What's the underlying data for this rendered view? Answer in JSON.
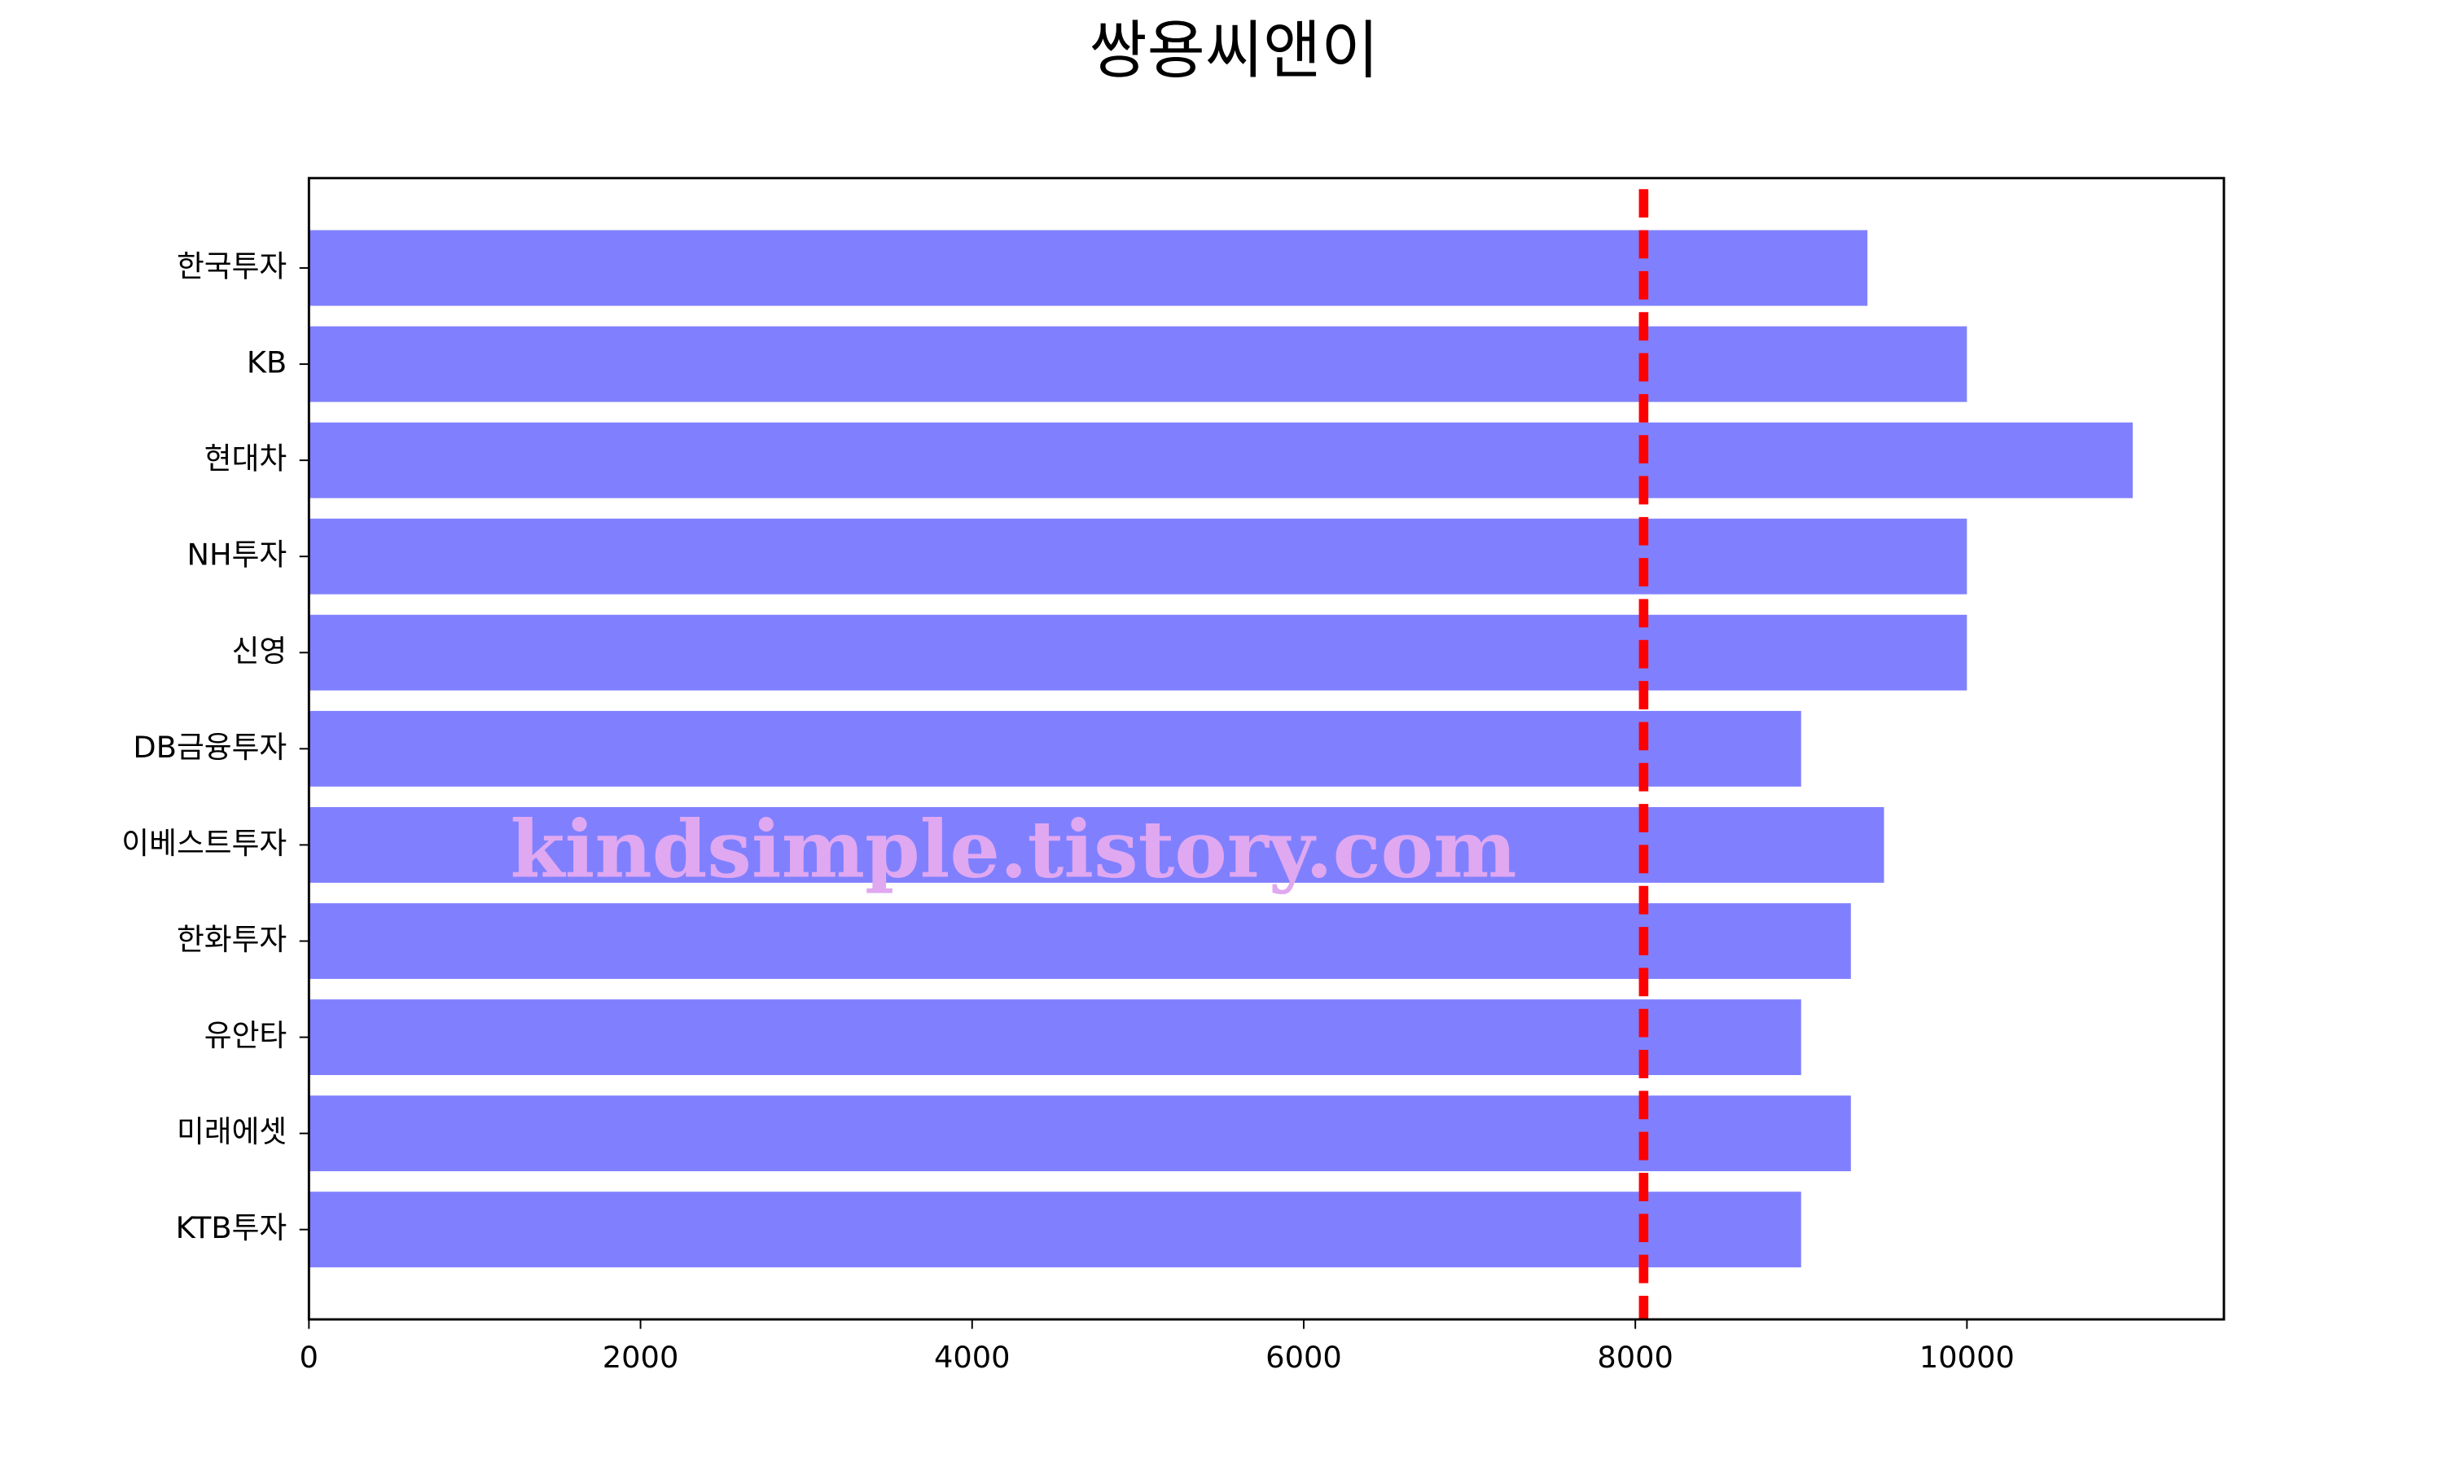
{
  "chart_data": {
    "type": "barh",
    "title": "쌍용씨앤이",
    "categories": [
      "한국투자",
      "KB",
      "현대차",
      "NH투자",
      "신영",
      "DB금융투자",
      "이베스트투자",
      "한화투자",
      "유안타",
      "미래에셋",
      "KTB투자"
    ],
    "values": [
      9400,
      10000,
      11000,
      10000,
      10000,
      9000,
      9500,
      9300,
      9000,
      9300,
      9000
    ],
    "color": "#8080ff",
    "xlim": [
      0,
      11550
    ],
    "xticks": [
      0,
      2000,
      4000,
      6000,
      8000,
      10000
    ],
    "reference_line": {
      "value": 8050,
      "color": "#ff0000"
    },
    "watermark": "kindsimple.tistory.com"
  }
}
